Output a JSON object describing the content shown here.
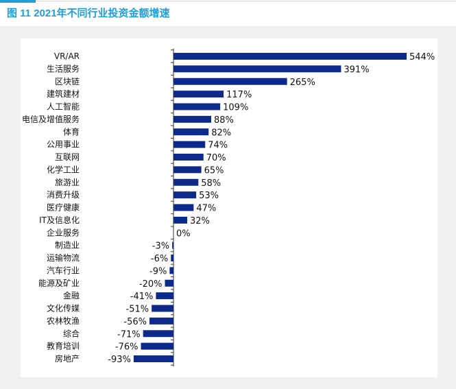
{
  "figure": {
    "title": "图 11  2021年不同行业投资金额增速"
  },
  "colors": {
    "bar": "#0d2a8a",
    "title": "#1f9fd9",
    "panel": "#f0f1f3",
    "axis": "#333333"
  },
  "chart_data": {
    "type": "bar",
    "orientation": "horizontal",
    "unit": "%",
    "categories": [
      "VR/AR",
      "生活服务",
      "区块链",
      "建筑建材",
      "人工智能",
      "电信及增值服务",
      "体育",
      "公用事业",
      "互联网",
      "化学工业",
      "旅游业",
      "消费升级",
      "医疗健康",
      "IT及信息化",
      "企业服务",
      "制造业",
      "运输物流",
      "汽车行业",
      "能源及矿业",
      "金融",
      "文化传媒",
      "农林牧渔",
      "综合",
      "教育培训",
      "房地产"
    ],
    "values": [
      544,
      391,
      265,
      117,
      109,
      88,
      82,
      74,
      70,
      65,
      58,
      53,
      47,
      32,
      0,
      -3,
      -6,
      -9,
      -20,
      -41,
      -51,
      -56,
      -71,
      -76,
      -93
    ],
    "value_labels": [
      "544%",
      "391%",
      "265%",
      "117%",
      "109%",
      "88%",
      "82%",
      "74%",
      "70%",
      "65%",
      "58%",
      "53%",
      "47%",
      "32%",
      "0%",
      "-3%",
      "-6%",
      "-9%",
      "-20%",
      "-41%",
      "-51%",
      "-56%",
      "-71%",
      "-76%",
      "-93%"
    ],
    "title": "",
    "xlabel": "",
    "ylabel": "",
    "grid": false,
    "legend": "none"
  }
}
